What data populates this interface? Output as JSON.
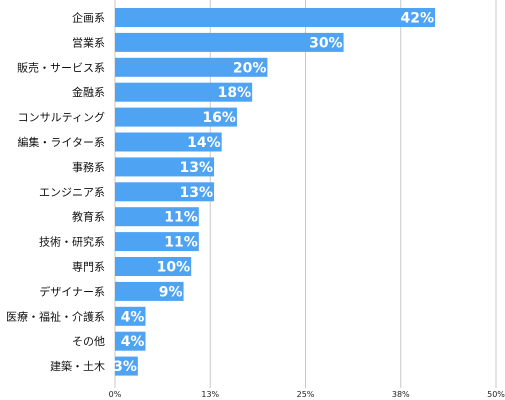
{
  "chart_data": {
    "type": "bar",
    "orientation": "horizontal",
    "title": "",
    "xlabel": "",
    "ylabel": "",
    "categories": [
      "企画系",
      "営業系",
      "販売・サービス系",
      "金融系",
      "コンサルティング",
      "編集・ライター系",
      "事務系",
      "エンジニア系",
      "教育系",
      "技術・研究系",
      "専門系",
      "デザイナー系",
      "医療・福祉・介護系",
      "その他",
      "建築・土木"
    ],
    "values": [
      42,
      30,
      20,
      18,
      16,
      14,
      13,
      13,
      11,
      11,
      10,
      9,
      4,
      4,
      3
    ],
    "value_labels": [
      "42%",
      "30%",
      "20%",
      "18%",
      "16%",
      "14%",
      "13%",
      "13%",
      "11%",
      "11%",
      "10%",
      "9%",
      "4%",
      "4%",
      "3%"
    ],
    "xlim": [
      0,
      50
    ],
    "ticks": [
      0,
      12.5,
      25,
      37.5,
      50
    ],
    "tick_labels": [
      "0%",
      "13%",
      "25%",
      "38%",
      "50%"
    ],
    "grid": true,
    "bar_color": "#4fa3f3"
  }
}
